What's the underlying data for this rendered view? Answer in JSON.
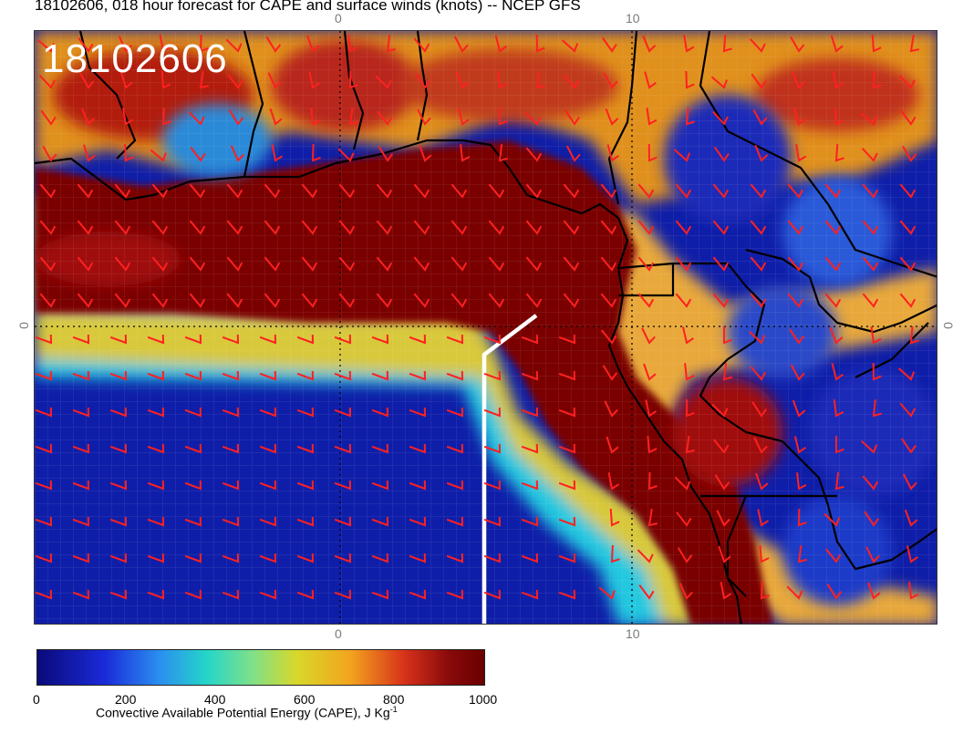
{
  "title": "18102606, 018 hour forecast for CAPE and surface winds (knots) -- NCEP GFS",
  "stamp": "18102606",
  "axis_ticks": {
    "top_0": "0",
    "top_10": "10",
    "bottom_0": "0",
    "bottom_10": "10",
    "left_0": "0",
    "right_0": "0"
  },
  "colorbar": {
    "ticks": [
      "0",
      "200",
      "400",
      "600",
      "800",
      "1000"
    ],
    "caption": "Convective Available Potential Energy (CAPE), J Kg",
    "caption_sup": "-1"
  },
  "colors": {
    "land_cape_high": "#7a0000",
    "ocean_cape_low": "#0d1a9a",
    "wind_barbs": "#ff2020",
    "coastlines": "#000000",
    "highlight_line": "#ffffff"
  }
}
